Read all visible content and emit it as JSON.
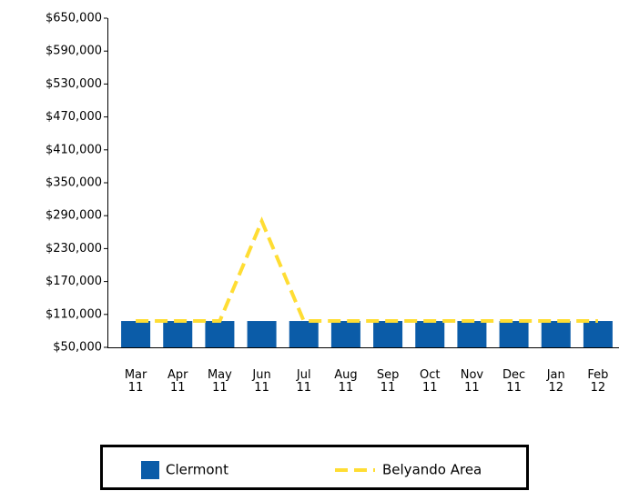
{
  "chart_data": {
    "type": "bar_line",
    "categories": [
      "Mar 11",
      "Apr 11",
      "May 11",
      "Jun 11",
      "Jul 11",
      "Aug 11",
      "Sep 11",
      "Oct 11",
      "Nov 11",
      "Dec 11",
      "Jan 12",
      "Feb 12"
    ],
    "series": [
      {
        "name": "Clermont",
        "type": "bar",
        "color": "#0b5ca8",
        "values": [
          98000,
          98000,
          98000,
          98000,
          98000,
          98000,
          98000,
          98000,
          98000,
          98000,
          98000,
          98000
        ]
      },
      {
        "name": "Belyando Area",
        "type": "line",
        "color": "#ffdd33",
        "dashed": true,
        "values": [
          98000,
          98000,
          98000,
          280000,
          98000,
          98000,
          98000,
          98000,
          98000,
          98000,
          98000,
          98000
        ]
      }
    ],
    "ylim": [
      50000,
      650000
    ],
    "yticks": [
      {
        "value": 50000,
        "label": "$50,000"
      },
      {
        "value": 110000,
        "label": "$110,000"
      },
      {
        "value": 170000,
        "label": "$170,000"
      },
      {
        "value": 230000,
        "label": "$230,000"
      },
      {
        "value": 290000,
        "label": "$290,000"
      },
      {
        "value": 350000,
        "label": "$350,000"
      },
      {
        "value": 410000,
        "label": "$410,000"
      },
      {
        "value": 470000,
        "label": "$470,000"
      },
      {
        "value": 530000,
        "label": "$530,000"
      },
      {
        "value": 590000,
        "label": "$590,000"
      },
      {
        "value": 650000,
        "label": "$650,000"
      }
    ],
    "grid": false,
    "legend": "bottom"
  }
}
